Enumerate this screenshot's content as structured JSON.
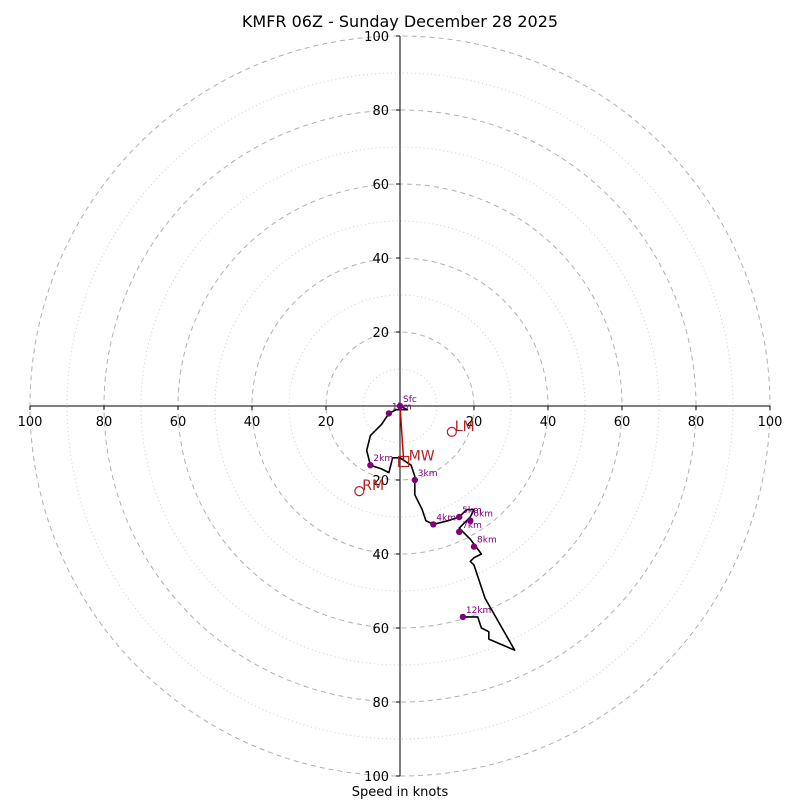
{
  "chart_data": {
    "type": "hodograph",
    "title": "KMFR 06Z - Sunday December 28 2025",
    "xlabel": "Speed in knots",
    "range": [
      -100,
      100
    ],
    "ring_radii_major": [
      20,
      40,
      60,
      80,
      100
    ],
    "ring_radii_minor": [
      10,
      30,
      50,
      70,
      90
    ],
    "tick_labels": {
      "x": [
        "100",
        "80",
        "60",
        "40",
        "20",
        "20",
        "40",
        "60",
        "80",
        "100"
      ],
      "y": [
        "100",
        "80",
        "60",
        "40",
        "20",
        "20",
        "40",
        "60",
        "80",
        "100"
      ]
    },
    "tick_values": {
      "x": [
        -100,
        -80,
        -60,
        -40,
        -20,
        20,
        40,
        60,
        80,
        100
      ],
      "y": [
        100,
        80,
        60,
        40,
        20,
        -20,
        -40,
        -60,
        -80,
        -100
      ]
    },
    "trace": [
      [
        0,
        0
      ],
      [
        2,
        -1
      ],
      [
        -1,
        -1
      ],
      [
        -3,
        -2
      ],
      [
        -5,
        -5
      ],
      [
        -8,
        -8
      ],
      [
        -9,
        -12
      ],
      [
        -8,
        -16
      ],
      [
        -5,
        -17
      ],
      [
        -3,
        -18
      ],
      [
        -2,
        -14
      ],
      [
        0,
        -14
      ],
      [
        3,
        -16
      ],
      [
        4,
        -19
      ],
      [
        4,
        -24
      ],
      [
        6,
        -28
      ],
      [
        7,
        -31
      ],
      [
        9,
        -32
      ],
      [
        13,
        -31
      ],
      [
        16,
        -30
      ],
      [
        18,
        -28
      ],
      [
        20,
        -28
      ],
      [
        19,
        -30
      ],
      [
        18,
        -31
      ],
      [
        16,
        -33
      ],
      [
        19,
        -36
      ],
      [
        22,
        -40
      ],
      [
        20,
        -41
      ],
      [
        19,
        -42
      ],
      [
        20,
        -43
      ],
      [
        23,
        -52
      ],
      [
        31,
        -66
      ],
      [
        24,
        -63
      ],
      [
        24,
        -61
      ],
      [
        22,
        -60
      ],
      [
        21,
        -57
      ],
      [
        19,
        -57
      ],
      [
        17,
        -57
      ]
    ],
    "height_markers": [
      {
        "label": "Sfc",
        "u": 0,
        "v": 0
      },
      {
        "label": "1km",
        "u": -3,
        "v": -2
      },
      {
        "label": "2km",
        "u": -8,
        "v": -16
      },
      {
        "label": "3km",
        "u": 4,
        "v": -20
      },
      {
        "label": "4km",
        "u": 9,
        "v": -32
      },
      {
        "label": "5km",
        "u": 16,
        "v": -30
      },
      {
        "label": "6km",
        "u": 19,
        "v": -31
      },
      {
        "label": "7km",
        "u": 16,
        "v": -34
      },
      {
        "label": "8km",
        "u": 20,
        "v": -38
      },
      {
        "label": "12km",
        "u": 17,
        "v": -57
      }
    ],
    "storm_motion": [
      {
        "label": "LM",
        "u": 14,
        "v": -7
      },
      {
        "label": "MW",
        "u": 1,
        "v": -15
      },
      {
        "label": "RM",
        "u": -11,
        "v": -23
      }
    ],
    "shear_vector": {
      "from": [
        0,
        0
      ],
      "to": [
        1,
        -15
      ]
    }
  },
  "colors": {
    "trace": "#000000",
    "markers": "#800080",
    "storm_motion": "#b22222",
    "shear": "#cc0000",
    "grid": "#b0b0b0",
    "grid_minor": "#d0d0d0",
    "axis": "#000000"
  }
}
